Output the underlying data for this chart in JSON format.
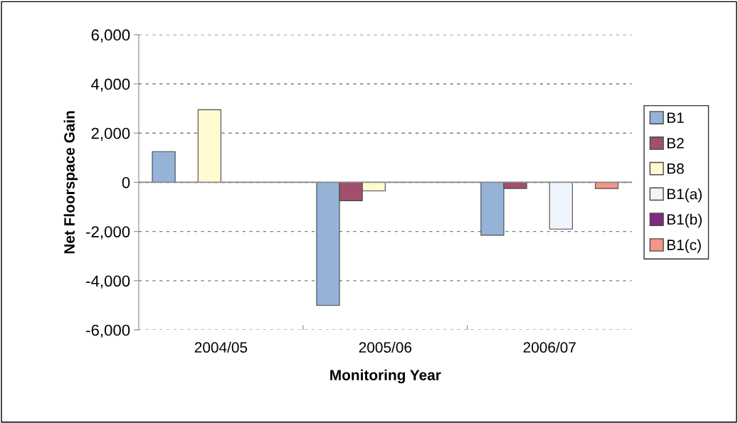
{
  "chart_data": {
    "type": "bar",
    "xlabel": "Monitoring Year",
    "ylabel": "Net Floorspace Gain",
    "categories": [
      "2004/05",
      "2005/06",
      "2006/07"
    ],
    "series": [
      {
        "name": "B1",
        "color": "#95b3d7",
        "values": [
          1250,
          -5000,
          -2150
        ]
      },
      {
        "name": "B2",
        "color": "#a0506e",
        "values": [
          null,
          -750,
          -250
        ]
      },
      {
        "name": "B8",
        "color": "#fffad0",
        "values": [
          2950,
          -350,
          null
        ]
      },
      {
        "name": "B1(a)",
        "color": "#eef5fc",
        "values": [
          null,
          null,
          -1900
        ]
      },
      {
        "name": "B1(b)",
        "color": "#7f2a7f",
        "values": [
          null,
          null,
          null
        ]
      },
      {
        "name": "B1(c)",
        "color": "#f4958a",
        "values": [
          null,
          null,
          -250
        ]
      }
    ],
    "ylim": [
      -6000,
      6000
    ],
    "yticks": [
      {
        "value": -6000,
        "label": "-6,000"
      },
      {
        "value": -4000,
        "label": "-4,000"
      },
      {
        "value": -2000,
        "label": "-2,000"
      },
      0,
      {
        "value": 2000,
        "label": "2,000"
      },
      {
        "value": 4000,
        "label": "4,000"
      },
      {
        "value": 6000,
        "label": "6,000"
      }
    ],
    "grid": "y",
    "legend": "right"
  }
}
